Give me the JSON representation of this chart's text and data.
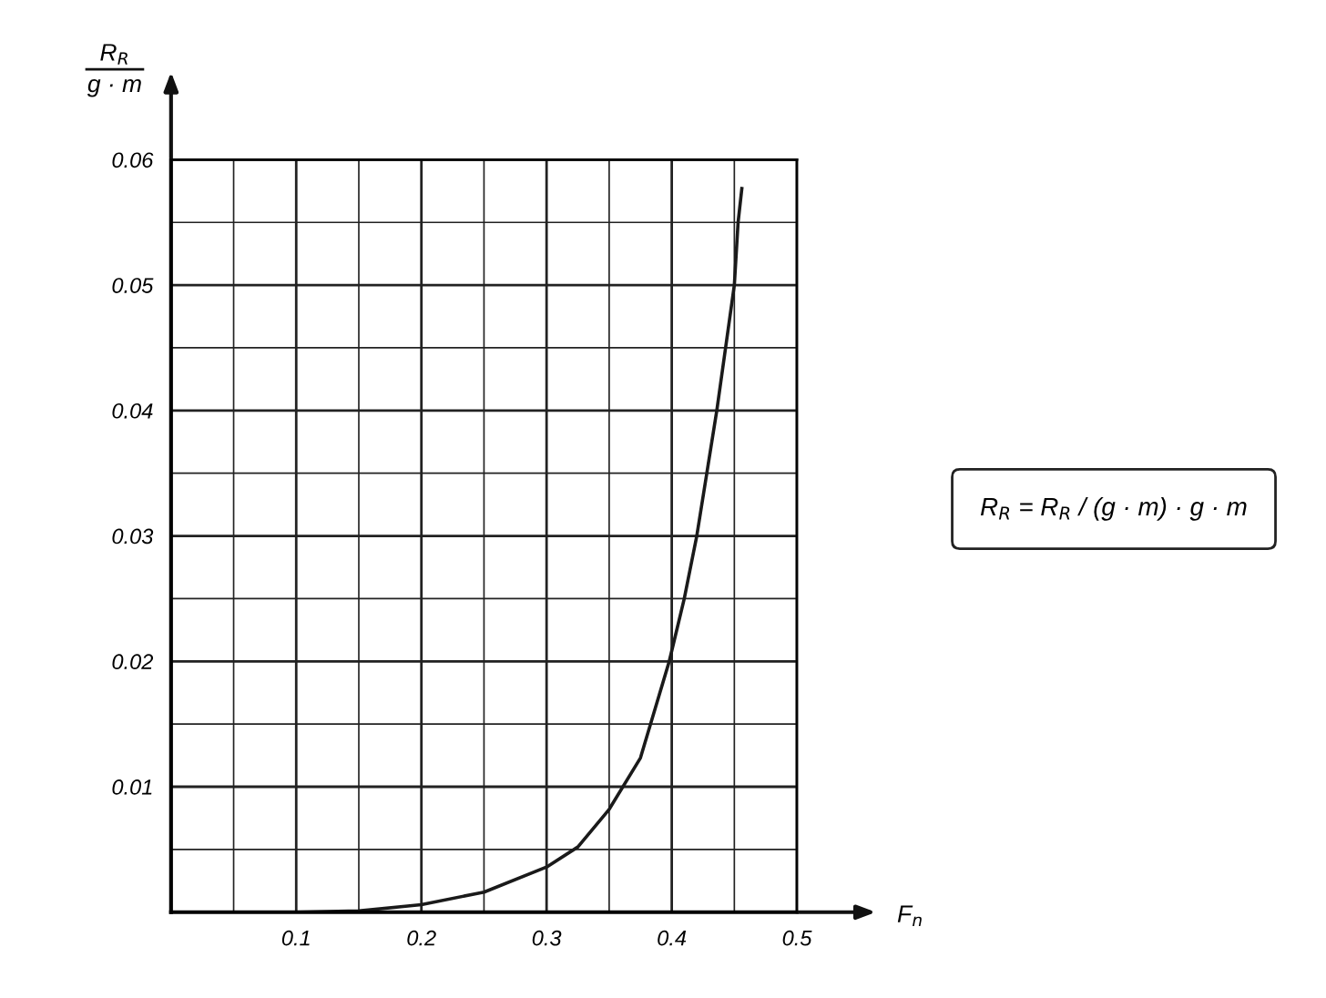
{
  "chart_data": {
    "type": "line",
    "xlabel": "F$_{n}$",
    "ylabel": "R$_{R}$\ng · m",
    "x": [
      0.1,
      0.15,
      0.2,
      0.25,
      0.3,
      0.325,
      0.35,
      0.375,
      0.398,
      0.41,
      0.42,
      0.428,
      0.436,
      0.443,
      0.45,
      0.453,
      0.456
    ],
    "series": [
      {
        "color": "#1a1a1a",
        "values": [
          0,
          0.0001,
          0.0006,
          0.0016,
          0.0036,
          0.0052,
          0.0082,
          0.0123,
          0.02,
          0.025,
          0.03,
          0.035,
          0.04,
          0.045,
          0.05,
          0.055,
          0.0577
        ]
      }
    ],
    "xlim": [
      0,
      0.5
    ],
    "ylim": [
      0,
      0.06
    ],
    "xticks": [
      {
        "value": 0.05,
        "label": null
      },
      0.1,
      {
        "value": 0.15,
        "label": null
      },
      0.2,
      {
        "value": 0.25,
        "label": null
      },
      0.3,
      {
        "value": 0.35,
        "label": null
      },
      0.4,
      {
        "value": 0.45,
        "label": null
      },
      0.5
    ],
    "yticks": [
      {
        "value": 0.005,
        "label": null
      },
      0.01,
      {
        "value": 0.015,
        "label": null
      },
      0.02,
      {
        "value": 0.025,
        "label": null
      },
      0.03,
      {
        "value": 0.035,
        "label": null
      },
      0.04,
      {
        "value": 0.045,
        "label": null
      },
      0.05,
      {
        "value": 0.055,
        "label": null
      },
      0.06
    ],
    "grid": true,
    "marker": "none",
    "line_style": "solid",
    "annotations": [
      "R$_{R}$ = R$_{R}$ / (g · m) · g · m"
    ]
  }
}
